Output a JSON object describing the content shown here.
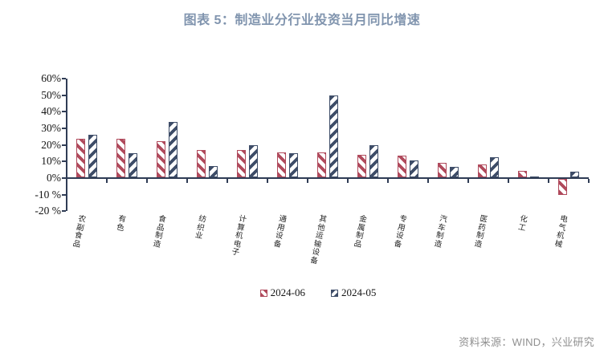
{
  "title": "图表 5：制造业分行业投资当月同比增速",
  "source_note": "资料来源：WIND，兴业研究",
  "colors": {
    "title_text": "#8094ae",
    "axis": "#2f3c55",
    "series_2024_06": "#b04a5c",
    "series_2024_05": "#3e4d68",
    "source_text": "#909090"
  },
  "chart_data": {
    "type": "bar",
    "title": "图表 5：制造业分行业投资当月同比增速",
    "categories": [
      "农副食品",
      "有色",
      "食品制造",
      "纺织业",
      "计算机电子",
      "通用设备",
      "其他运输设备",
      "金属制品",
      "专用设备",
      "汽车制造",
      "医药制造",
      "化工",
      "电气机械"
    ],
    "series": [
      {
        "name": "2024-06",
        "color": "#b04a5c",
        "hatch": "\\",
        "values": [
          23,
          23,
          21.5,
          16.5,
          16.5,
          15,
          15,
          13.5,
          13,
          8.5,
          7.5,
          4,
          -9.5
        ]
      },
      {
        "name": "2024-05",
        "color": "#3e4d68",
        "hatch": "/",
        "values": [
          25.5,
          14.5,
          33.5,
          7,
          19.5,
          14.5,
          49.5,
          19.5,
          10,
          6.5,
          12,
          0.5,
          3.5
        ]
      }
    ],
    "xlabel": "",
    "ylabel": "",
    "ylim": [
      -20,
      60
    ],
    "yticks": [
      {
        "value": 60,
        "label": "60%"
      },
      {
        "value": 50,
        "label": "50%"
      },
      {
        "value": 40,
        "label": "40%"
      },
      {
        "value": 30,
        "label": "30%"
      },
      {
        "value": 20,
        "label": "20%"
      },
      {
        "value": 10,
        "label": "10%"
      },
      {
        "value": 0,
        "label": "0%"
      },
      {
        "value": -10,
        "label": "-10 %"
      },
      {
        "value": -20,
        "label": "-20 %"
      }
    ],
    "grid": false,
    "legend_position": "bottom-center",
    "unit": "percent, year-over-year"
  }
}
